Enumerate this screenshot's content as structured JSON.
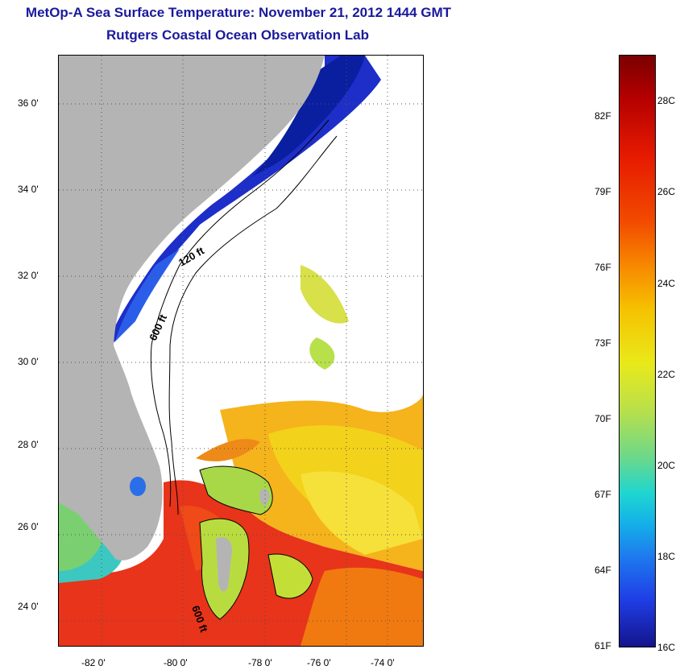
{
  "title": "MetOp-A Sea Surface Temperature:  November 21, 2012 1444 GMT",
  "subtitle": "Rutgers Coastal Ocean Observation Lab",
  "map": {
    "contour_labels": [
      "120 ft",
      "600 ft",
      "600 ft"
    ],
    "lat_labels": [
      "36 0'",
      "34 0'",
      "32 0'",
      "30 0'",
      "28 0'",
      "26 0'",
      "24 0'"
    ],
    "lon_labels": [
      "-82 0'",
      "-80 0'",
      "-78 0'",
      "-76 0'",
      "-74 0'"
    ],
    "land_color": "#b4b4b4",
    "cloud_color": "#ffffff"
  },
  "colorbar": {
    "fahrenheit_labels": [
      "82F",
      "79F",
      "76F",
      "73F",
      "70F",
      "67F",
      "64F",
      "61F"
    ],
    "celsius_labels": [
      "28C",
      "26C",
      "24C",
      "22C",
      "20C",
      "18C",
      "16C"
    ],
    "min_c": 16,
    "max_c": 29.5
  }
}
